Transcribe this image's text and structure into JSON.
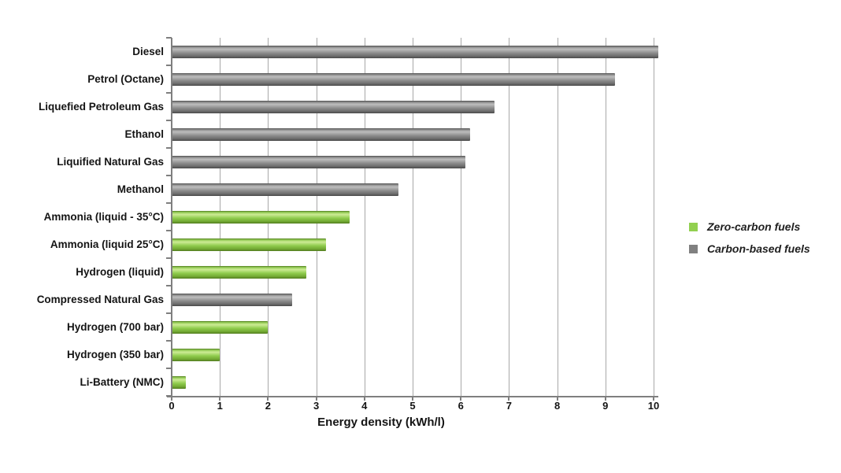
{
  "chart_data": {
    "type": "bar",
    "orientation": "horizontal",
    "title": "",
    "xlabel": "Energy density (kWh/l)",
    "ylabel": "",
    "xlim": [
      0,
      10
    ],
    "xticks": [
      0,
      1,
      2,
      3,
      4,
      5,
      6,
      7,
      8,
      9,
      10
    ],
    "grid": "vertical-only",
    "categories": [
      "Diesel",
      "Petrol (Octane)",
      "Liquefied Petroleum Gas",
      "Ethanol",
      "Liquified Natural Gas",
      "Methanol",
      "Ammonia (liquid - 35°C)",
      "Ammonia (liquid 25°C)",
      "Hydrogen (liquid)",
      "Compressed Natural Gas",
      "Hydrogen (700 bar)",
      "Hydrogen (350 bar)",
      "Li-Battery (NMC)"
    ],
    "values": [
      10.1,
      9.2,
      6.7,
      6.2,
      6.1,
      4.7,
      3.7,
      3.2,
      2.8,
      2.5,
      2.0,
      1.0,
      0.3
    ],
    "groups": [
      "carbon",
      "carbon",
      "carbon",
      "carbon",
      "carbon",
      "carbon",
      "zero",
      "zero",
      "zero",
      "carbon",
      "zero",
      "zero",
      "zero"
    ],
    "colors": {
      "zero": "#92d050",
      "carbon": "#808080"
    },
    "legend": {
      "position": "right",
      "entries": [
        {
          "label": "Zero-carbon fuels",
          "key": "zero",
          "color": "#92d050"
        },
        {
          "label": "Carbon-based fuels",
          "key": "carbon",
          "color": "#808080"
        }
      ]
    }
  }
}
